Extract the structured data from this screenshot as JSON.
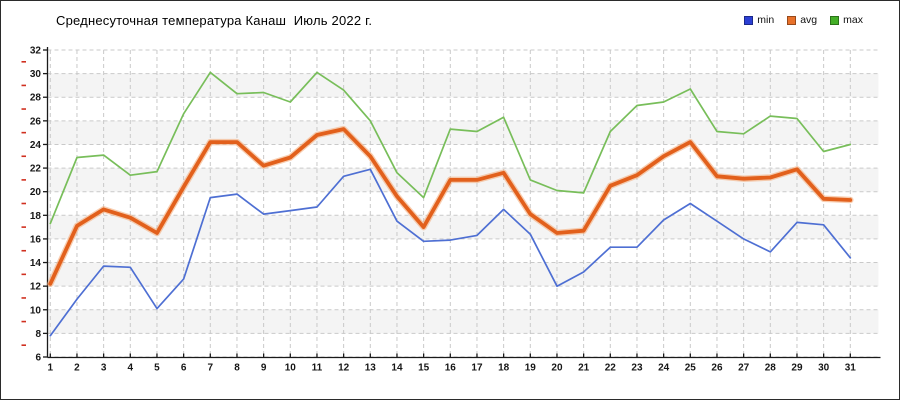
{
  "title": "Среднесуточная температура Канаш  Июль 2022 г.",
  "chart_data": {
    "type": "line",
    "title": "Среднесуточная температура Канаш  Июль 2022 г.",
    "xlabel": "",
    "ylabel": "",
    "x": [
      1,
      2,
      3,
      4,
      5,
      6,
      7,
      8,
      9,
      10,
      11,
      12,
      13,
      14,
      15,
      16,
      17,
      18,
      19,
      20,
      21,
      22,
      23,
      24,
      25,
      26,
      27,
      28,
      29,
      30,
      31
    ],
    "ylim": [
      6,
      32
    ],
    "ytick_step": 2,
    "grid": "dashed-both-axes",
    "legend_position": "top-right",
    "background_bands_color": "#f4f4f4",
    "gridline_color": "#c9c9c9",
    "axis_color": "#1a1a1a",
    "minor_tick_color": "#d03020",
    "series": [
      {
        "name": "min",
        "line_color": "#4e6fd3",
        "legend_color": "#2b3fd4",
        "halo": false,
        "values": [
          7.8,
          10.9,
          13.7,
          13.6,
          10.1,
          12.6,
          19.5,
          19.8,
          18.1,
          18.4,
          18.7,
          21.3,
          21.9,
          17.5,
          15.8,
          15.9,
          16.3,
          18.5,
          16.4,
          12.0,
          13.2,
          15.3,
          15.3,
          17.6,
          19.0,
          17.5,
          16.0,
          14.9,
          17.4,
          17.2,
          14.4
        ]
      },
      {
        "name": "avg",
        "line_color": "#e2601c",
        "legend_color": "#e8712a",
        "halo": true,
        "values": [
          12.2,
          17.1,
          18.5,
          17.8,
          16.5,
          20.4,
          24.2,
          24.2,
          22.2,
          22.9,
          24.8,
          25.3,
          23.0,
          19.6,
          17.0,
          21.0,
          21.0,
          21.6,
          18.1,
          16.5,
          16.7,
          20.5,
          21.4,
          23.0,
          24.2,
          21.3,
          21.1,
          21.2,
          21.9,
          19.4,
          19.3
        ]
      },
      {
        "name": "max",
        "line_color": "#78be5a",
        "legend_color": "#44af27",
        "halo": false,
        "values": [
          17.3,
          22.9,
          23.1,
          21.4,
          21.7,
          26.6,
          30.1,
          28.3,
          28.4,
          27.6,
          30.1,
          28.6,
          26.0,
          21.6,
          19.5,
          25.3,
          25.1,
          26.3,
          21.0,
          20.1,
          19.9,
          25.1,
          27.3,
          27.6,
          28.7,
          25.1,
          24.9,
          26.4,
          26.2,
          23.4,
          24.0
        ]
      }
    ]
  }
}
